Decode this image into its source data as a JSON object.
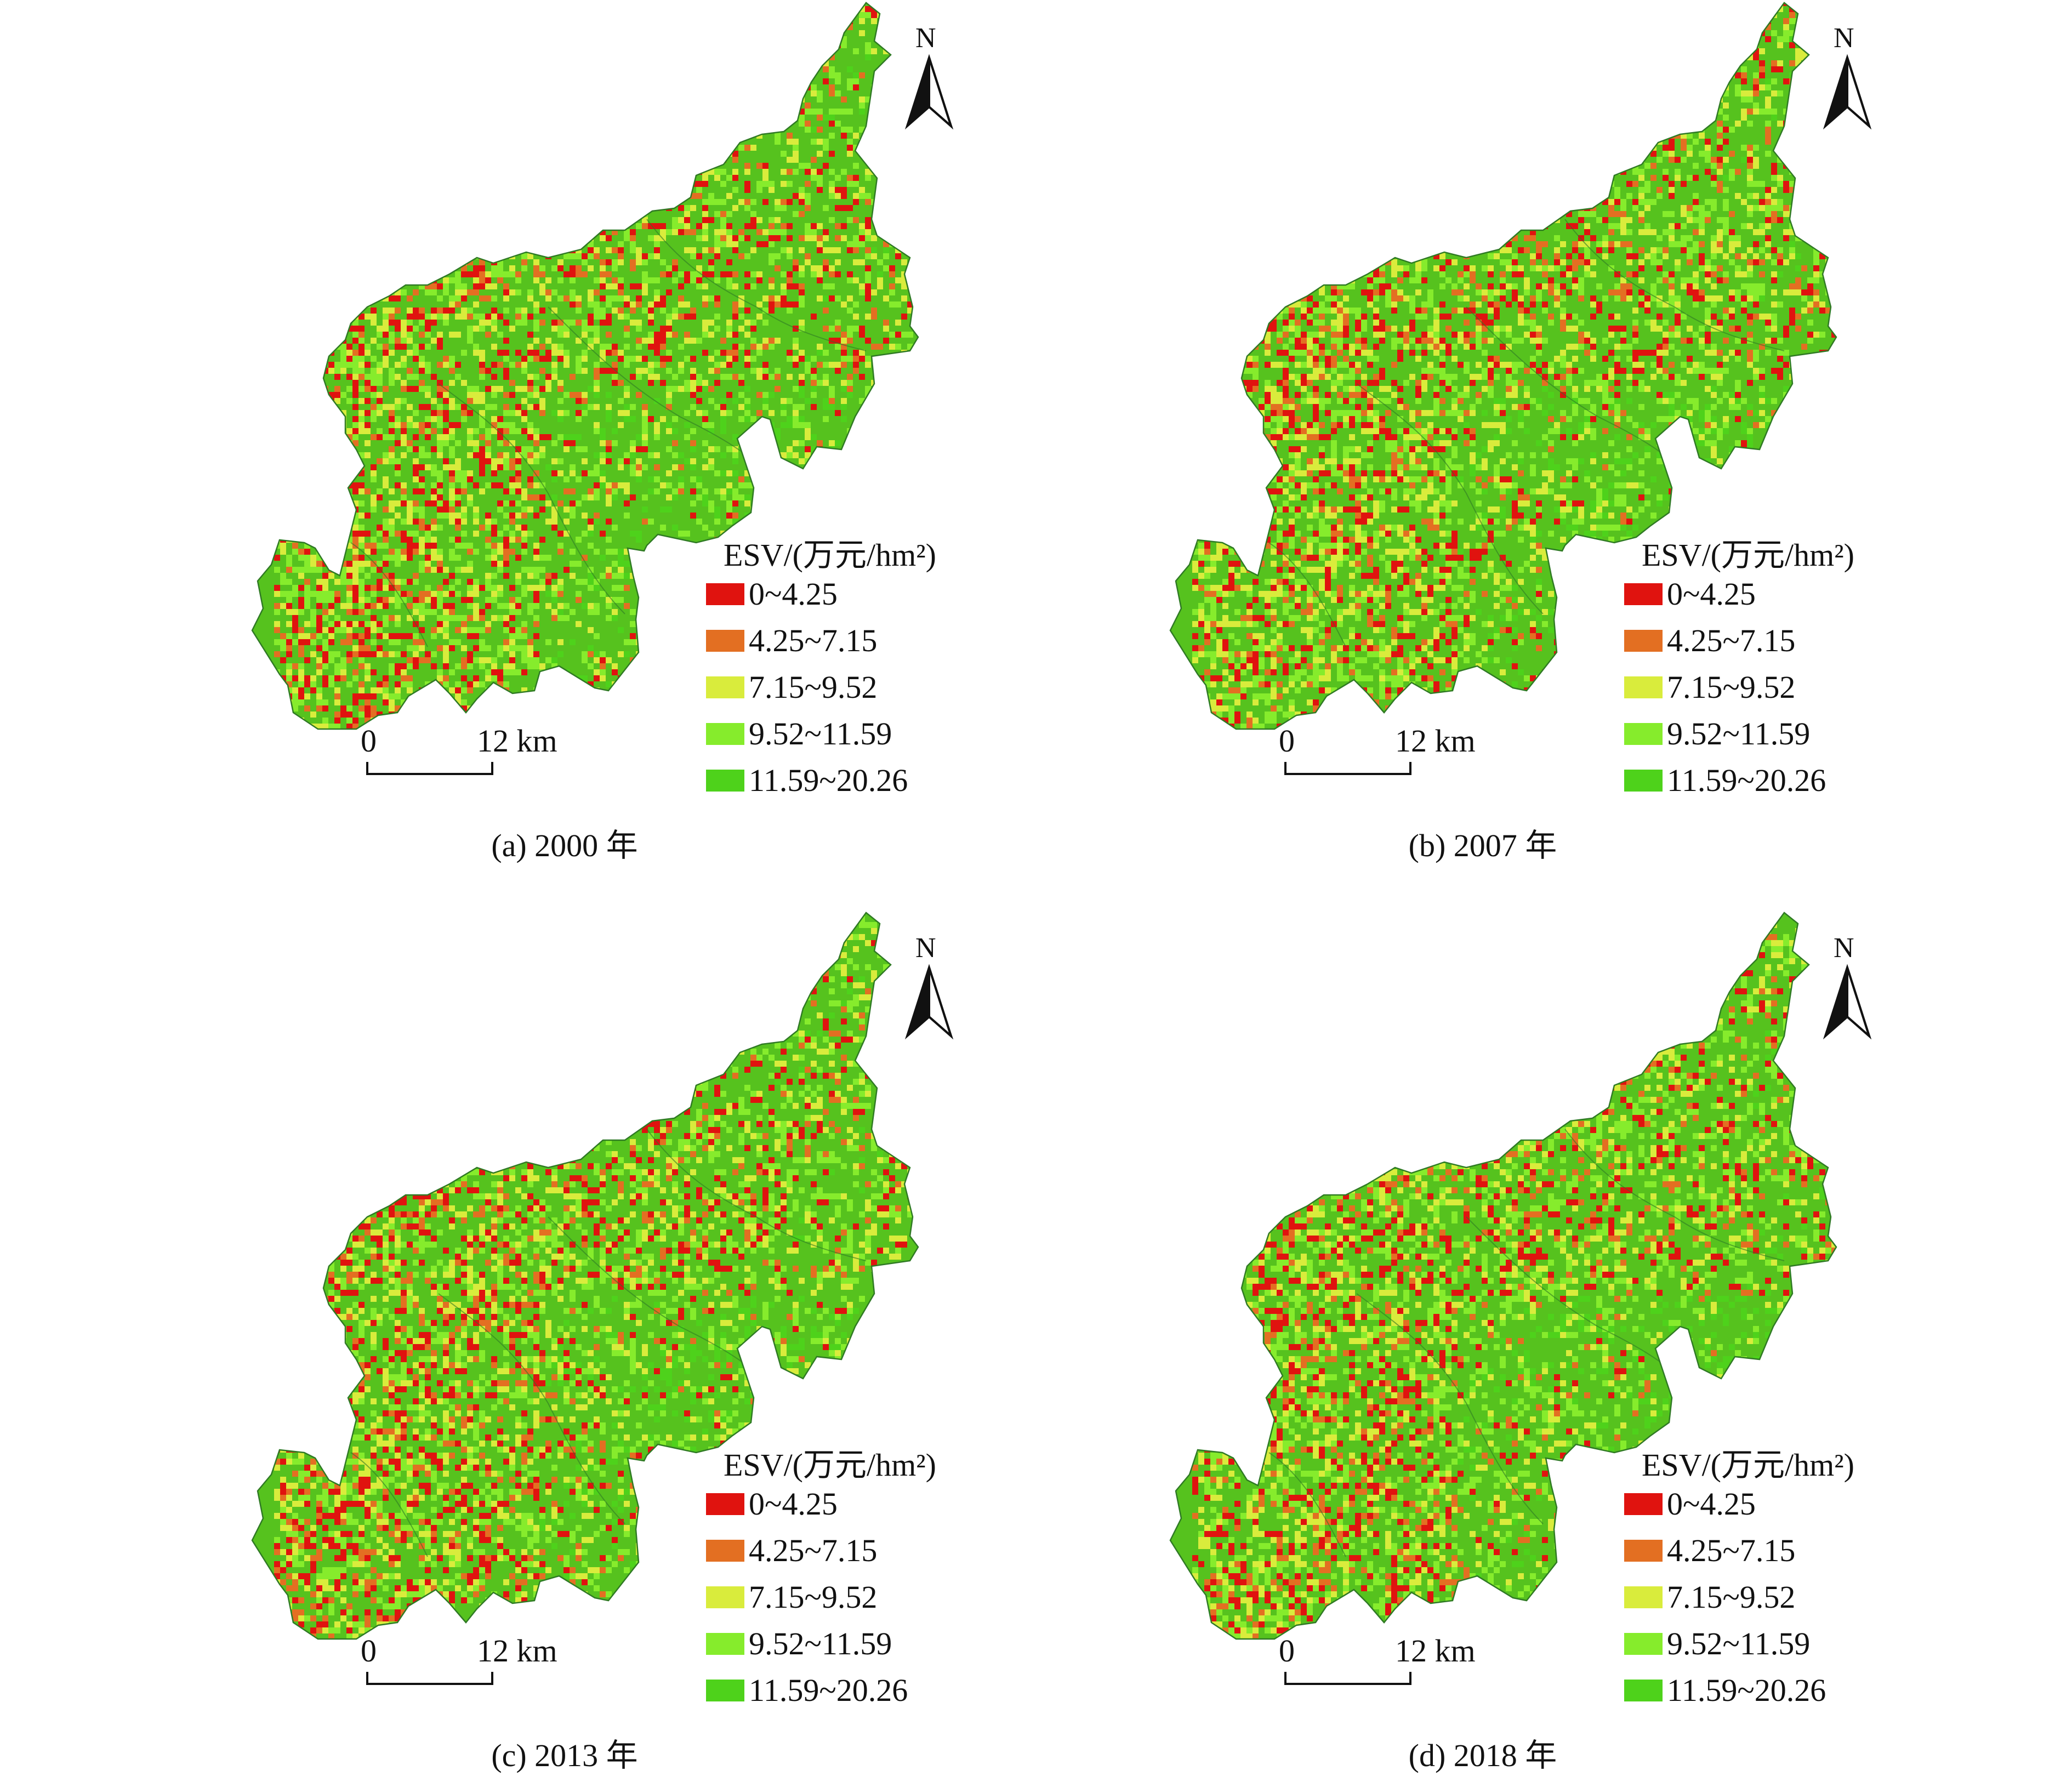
{
  "colors": {
    "class1": "#e0130f",
    "class2": "#e36f22",
    "class3": "#d9ec3c",
    "class4": "#86ec2c",
    "class5": "#4ed21b",
    "base": "#56c21e",
    "outline": "#2f7a24"
  },
  "legend": {
    "title": "ESV/(万元/hm²)",
    "classes": [
      {
        "label": "0~4.25",
        "color": "#e0130f"
      },
      {
        "label": "4.25~7.15",
        "color": "#e36f22"
      },
      {
        "label": "7.15~9.52",
        "color": "#d9ec3c"
      },
      {
        "label": "9.52~11.59",
        "color": "#86ec2c"
      },
      {
        "label": "11.59~20.26",
        "color": "#4ed21b"
      }
    ]
  },
  "scale_bar": {
    "start": "0",
    "end": "12 km"
  },
  "north_arrow": {
    "label": "N",
    "icon": "north-arrow-icon"
  },
  "panels": [
    {
      "caption": "(a) 2000 年"
    },
    {
      "caption": "(b) 2007 年"
    },
    {
      "caption": "(c) 2013 年"
    },
    {
      "caption": "(d) 2018 年"
    }
  ]
}
